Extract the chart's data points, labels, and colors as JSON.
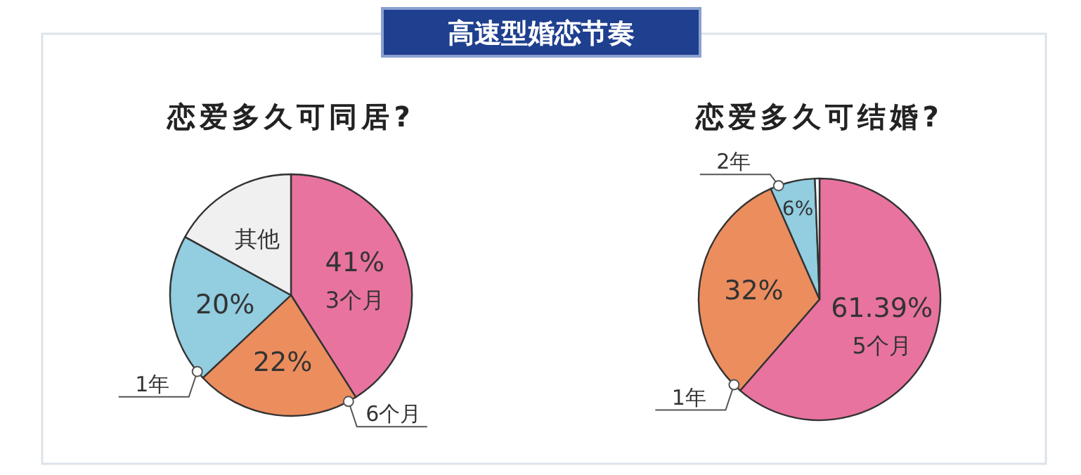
{
  "chart_data": [
    {
      "type": "other",
      "title": "高速型婚恋节奏"
    },
    {
      "type": "pie",
      "title": "恋爱多久可同居?",
      "categories": [
        "3个月",
        "6个月",
        "1年",
        "其他"
      ],
      "values": [
        41,
        22,
        20,
        17
      ],
      "value_labels": [
        "41%",
        "22%",
        "20%",
        null
      ],
      "colors": [
        "#e8739f",
        "#ec8d5e",
        "#92cde0",
        "#f0f0f0"
      ]
    },
    {
      "type": "pie",
      "title": "恋爱多久可结婚?",
      "categories": [
        "5个月",
        "1年",
        "2年",
        null
      ],
      "values": [
        61.39,
        32,
        6,
        0.61
      ],
      "value_labels": [
        "61.39%",
        "32%",
        "6%",
        null
      ],
      "colors": [
        "#e8739f",
        "#ec8d5e",
        "#92cde0",
        "#ffffff"
      ]
    }
  ]
}
